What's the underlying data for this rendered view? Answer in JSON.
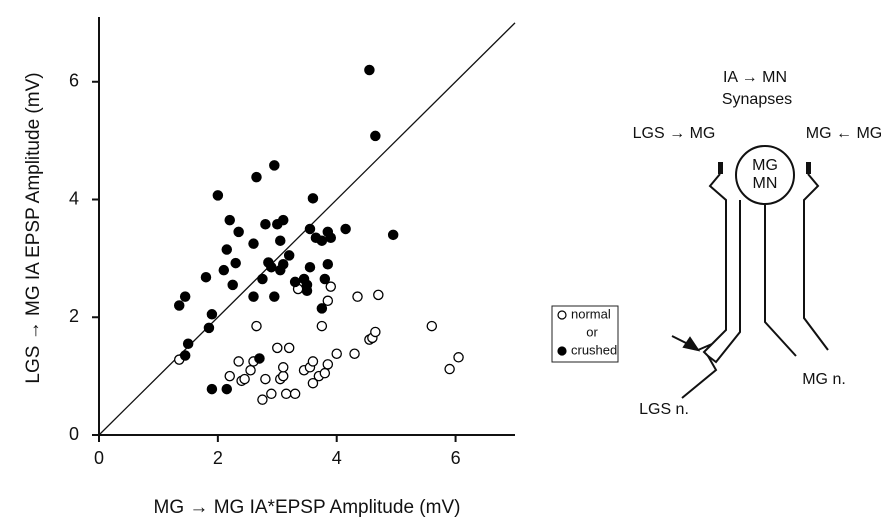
{
  "chart_data": {
    "type": "scatter",
    "xlabel": "MG → MG IA*EPSP Amplitude (mV)",
    "ylabel": "LGS → MG IA EPSP Amplitude (mV)",
    "xlim": [
      0,
      7
    ],
    "ylim": [
      0,
      7.1
    ],
    "xticks": [
      0,
      2,
      4,
      6
    ],
    "yticks": [
      0,
      2,
      4,
      6
    ],
    "grid": false,
    "identity_line": true,
    "legend_connector": "or",
    "series": [
      {
        "name": "normal",
        "color": "#000000",
        "marker": "open",
        "x": [
          1.35,
          2.2,
          2.35,
          2.4,
          2.45,
          2.55,
          2.6,
          2.65,
          2.75,
          2.8,
          2.9,
          3.0,
          3.05,
          3.1,
          3.1,
          3.15,
          3.2,
          3.3,
          3.35,
          3.45,
          3.55,
          3.6,
          3.6,
          3.7,
          3.75,
          3.8,
          3.85,
          3.85,
          3.9,
          4.0,
          4.3,
          4.35,
          4.55,
          4.6,
          4.65,
          4.7,
          5.6,
          5.9,
          6.05
        ],
        "values": [
          1.28,
          1.0,
          1.25,
          0.92,
          0.95,
          1.1,
          1.25,
          1.85,
          0.6,
          0.95,
          0.7,
          1.48,
          0.95,
          1.0,
          1.15,
          0.7,
          1.48,
          0.7,
          2.48,
          1.1,
          1.15,
          1.25,
          0.88,
          1.0,
          1.85,
          1.05,
          1.2,
          2.28,
          2.52,
          1.38,
          1.38,
          2.35,
          1.62,
          1.65,
          1.75,
          2.38,
          1.85,
          1.12,
          1.32
        ]
      },
      {
        "name": "crushed",
        "color": "#000000",
        "marker": "filled",
        "x": [
          1.35,
          1.45,
          1.45,
          1.5,
          1.8,
          1.85,
          1.9,
          1.9,
          2.0,
          2.1,
          2.15,
          2.15,
          2.2,
          2.25,
          2.3,
          2.35,
          2.6,
          2.6,
          2.65,
          2.7,
          2.75,
          2.8,
          2.85,
          2.9,
          2.95,
          2.95,
          3.0,
          3.05,
          3.05,
          3.1,
          3.1,
          3.2,
          3.3,
          3.45,
          3.5,
          3.5,
          3.55,
          3.55,
          3.6,
          3.65,
          3.75,
          3.75,
          3.8,
          3.85,
          3.85,
          3.9,
          4.15,
          4.55,
          4.65,
          4.95
        ],
        "values": [
          2.2,
          2.35,
          1.35,
          1.55,
          2.68,
          1.82,
          2.05,
          0.78,
          4.07,
          2.8,
          3.15,
          0.78,
          3.65,
          2.55,
          2.92,
          3.45,
          3.25,
          2.35,
          4.38,
          1.3,
          2.65,
          3.58,
          2.93,
          2.85,
          4.58,
          2.35,
          3.58,
          3.3,
          2.8,
          3.65,
          2.9,
          3.05,
          2.6,
          2.65,
          2.55,
          2.45,
          3.5,
          2.85,
          4.02,
          3.35,
          3.3,
          2.15,
          2.65,
          3.45,
          2.9,
          3.35,
          3.5,
          6.2,
          5.08,
          3.4
        ]
      }
    ]
  },
  "diagram": {
    "title_line1": "IA → MN",
    "title_line2": "Synapses",
    "left_synapse": "LGS → MG",
    "right_synapse": "MG ← MG",
    "cell_line1": "MG",
    "cell_line2": "MN",
    "mg_nerve": "MG n.",
    "lgs_nerve": "LGS n."
  }
}
